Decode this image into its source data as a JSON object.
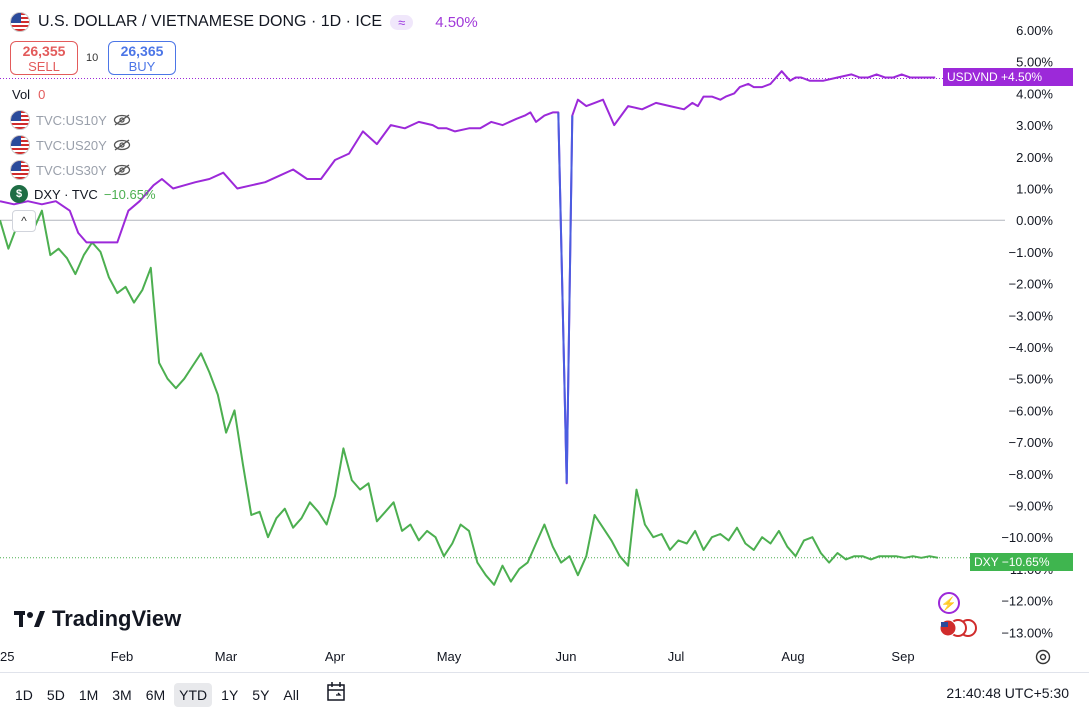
{
  "header": {
    "title": "U.S. DOLLAR / VIETNAMESE DONG · 1D · ICE",
    "badge": "≈",
    "change": "4.50%"
  },
  "quote": {
    "sell_price": "26,355",
    "sell_label": "SELL",
    "spread": "10",
    "buy_price": "26,365",
    "buy_label": "BUY"
  },
  "volume": {
    "label": "Vol",
    "value": "0"
  },
  "legend": [
    {
      "label": "TVC:US10Y"
    },
    {
      "label": "TVC:US20Y"
    },
    {
      "label": "TVC:US30Y"
    }
  ],
  "dxy_legend": {
    "label": "DXY · TVC",
    "change": "−10.65%"
  },
  "collapse_icon": "^",
  "price_tags": {
    "usdvnd": "USDVND +4.50%",
    "dxy": "DXY −10.65%"
  },
  "branding": {
    "logo_text": "TradingView"
  },
  "range_buttons": [
    "1D",
    "5D",
    "1M",
    "3M",
    "6M",
    "YTD",
    "1Y",
    "5Y",
    "All"
  ],
  "active_range": "YTD",
  "timestamp": "21:40:48 UTC+5:30",
  "colors": {
    "usdvnd": "#9c29d9",
    "dxy": "#4caf50",
    "spike": "#4a5de0",
    "sell": "#e35b5b",
    "buy": "#4c76e7"
  },
  "chart_data": {
    "type": "line",
    "xaxis_labels": [
      "'25",
      "Feb",
      "Mar",
      "Apr",
      "May",
      "Jun",
      "Jul",
      "Aug",
      "Sep"
    ],
    "ylim": [
      -13,
      6
    ],
    "yaxis_labels": [
      "6.00%",
      "5.00%",
      "4.00%",
      "3.00%",
      "2.00%",
      "1.00%",
      "0.00%",
      "−1.00%",
      "−2.00%",
      "−3.00%",
      "−4.00%",
      "−5.00%",
      "−6.00%",
      "−7.00%",
      "−8.00%",
      "−9.00%",
      "−10.00%",
      "−11.00%",
      "−12.00%",
      "−13.00%"
    ],
    "series": [
      {
        "name": "USDVND",
        "x": [
          0,
          5,
          10,
          15,
          20,
          25,
          28,
          31,
          34,
          38,
          42,
          46,
          50,
          52,
          55,
          58,
          62,
          66,
          70,
          75,
          80,
          85,
          90,
          95,
          100,
          105,
          110,
          115,
          120,
          125,
          130,
          135,
          140,
          145,
          150,
          155,
          157,
          160,
          163,
          168,
          172,
          176,
          180,
          185,
          188,
          190,
          192,
          195,
          198,
          200,
          203,
          205,
          207,
          210,
          213,
          216,
          220,
          225,
          230,
          235,
          240,
          245,
          248,
          250,
          252,
          255,
          258,
          260,
          263,
          265,
          268,
          270,
          273,
          276,
          280,
          283,
          285,
          287,
          290,
          295,
          300,
          305,
          308,
          311,
          314,
          317,
          320,
          323,
          326,
          329,
          332,
          335
        ],
        "y": [
          0.6,
          0.5,
          0.6,
          0.5,
          0.6,
          0.3,
          -0.4,
          -0.7,
          -0.7,
          -0.7,
          -0.7,
          0.3,
          0.6,
          0.8,
          1.1,
          1.3,
          1.0,
          1.1,
          1.2,
          1.3,
          1.5,
          1.0,
          1.1,
          1.2,
          1.4,
          1.6,
          1.3,
          1.3,
          1.9,
          2.1,
          2.8,
          2.4,
          3.0,
          2.9,
          3.1,
          3.0,
          2.9,
          2.9,
          2.8,
          2.9,
          2.9,
          3.1,
          3.0,
          3.2,
          3.3,
          3.4,
          3.1,
          3.3,
          3.4,
          3.4,
          -8.3,
          3.3,
          3.8,
          3.6,
          3.7,
          3.8,
          3.0,
          3.6,
          3.5,
          3.7,
          3.6,
          3.5,
          3.7,
          3.6,
          3.9,
          3.9,
          3.8,
          3.9,
          4.0,
          4.2,
          4.3,
          4.2,
          4.2,
          4.3,
          4.7,
          4.4,
          4.5,
          4.5,
          4.4,
          4.4,
          4.5,
          4.6,
          4.5,
          4.5,
          4.6,
          4.5,
          4.5,
          4.6,
          4.5,
          4.5,
          4.5,
          4.5
        ]
      },
      {
        "name": "DXY",
        "x": [
          0,
          3,
          6,
          9,
          12,
          15,
          18,
          21,
          24,
          27,
          30,
          33,
          36,
          39,
          42,
          45,
          48,
          51,
          54,
          57,
          60,
          63,
          66,
          69,
          72,
          75,
          78,
          81,
          84,
          87,
          90,
          93,
          96,
          99,
          102,
          105,
          108,
          111,
          114,
          117,
          120,
          123,
          126,
          129,
          132,
          135,
          138,
          141,
          144,
          147,
          150,
          153,
          156,
          159,
          162,
          165,
          168,
          171,
          174,
          177,
          180,
          183,
          186,
          189,
          192,
          195,
          198,
          201,
          204,
          207,
          210,
          213,
          216,
          219,
          222,
          225,
          228,
          231,
          234,
          237,
          240,
          243,
          246,
          249,
          252,
          255,
          258,
          261,
          264,
          267,
          270,
          273,
          276,
          279,
          282,
          285,
          288,
          291,
          294,
          297,
          300,
          303,
          306,
          309,
          312,
          315,
          318,
          321,
          324,
          327,
          330,
          333,
          336
        ],
        "y": [
          0.0,
          -0.9,
          -0.2,
          0.1,
          -0.3,
          0.3,
          -1.1,
          -0.9,
          -1.2,
          -1.7,
          -1.1,
          -0.7,
          -1.0,
          -1.8,
          -2.3,
          -2.1,
          -2.6,
          -2.2,
          -1.5,
          -4.5,
          -5.0,
          -5.3,
          -5.0,
          -4.6,
          -4.2,
          -4.8,
          -5.5,
          -6.7,
          -6.0,
          -7.7,
          -9.3,
          -9.2,
          -10.0,
          -9.4,
          -9.1,
          -9.7,
          -9.4,
          -8.9,
          -9.2,
          -9.6,
          -8.7,
          -7.2,
          -8.2,
          -8.5,
          -8.3,
          -9.5,
          -9.2,
          -8.9,
          -9.8,
          -9.6,
          -10.1,
          -9.8,
          -10.0,
          -10.6,
          -10.2,
          -9.6,
          -9.8,
          -10.8,
          -11.2,
          -11.5,
          -10.9,
          -11.4,
          -11.0,
          -10.8,
          -10.2,
          -9.6,
          -10.3,
          -10.8,
          -10.6,
          -11.2,
          -10.6,
          -9.3,
          -9.7,
          -10.1,
          -10.6,
          -10.9,
          -8.5,
          -9.6,
          -10.0,
          -9.9,
          -10.4,
          -10.1,
          -10.2,
          -9.8,
          -10.4,
          -10.0,
          -9.9,
          -10.1,
          -9.7,
          -10.2,
          -10.4,
          -10.0,
          -10.2,
          -9.8,
          -10.3,
          -10.6,
          -10.1,
          -10.0,
          -10.5,
          -10.8,
          -10.5,
          -10.7,
          -10.6,
          -10.6,
          -10.7,
          -10.6,
          -10.6,
          -10.6,
          -10.65,
          -10.6,
          -10.65,
          -10.6,
          -10.65
        ]
      }
    ],
    "reference_lines": [
      {
        "name": "zero",
        "y": 0
      }
    ],
    "grid": false,
    "legend_position": "top-left"
  }
}
